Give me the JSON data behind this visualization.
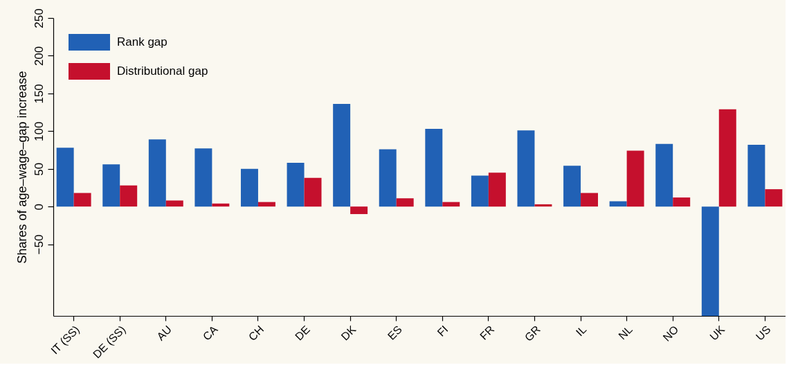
{
  "chart_data": {
    "type": "bar",
    "ylabel": "Shares of age–wage–gap increase",
    "categories": [
      "IT (SS)",
      "DE (SS)",
      "AU",
      "CA",
      "CH",
      "DE",
      "DK",
      "ES",
      "FI",
      "FR",
      "GR",
      "IL",
      "NL",
      "NO",
      "UK",
      "US"
    ],
    "series": [
      {
        "name": "Rank gap",
        "color": "#2161b5",
        "values": [
          78,
          56,
          89,
          77,
          50,
          58,
          136,
          76,
          103,
          41,
          101,
          54,
          7,
          83,
          -145,
          82
        ]
      },
      {
        "name": "Distributional gap",
        "color": "#c5102d",
        "values": [
          18,
          28,
          8,
          4,
          6,
          38,
          -10,
          11,
          6,
          45,
          3,
          18,
          74,
          12,
          129,
          23
        ]
      }
    ],
    "ylim": [
      -145,
      250
    ],
    "yticks": [
      -50,
      0,
      50,
      100,
      150,
      200,
      250
    ],
    "legend": "top left",
    "grid": false
  }
}
